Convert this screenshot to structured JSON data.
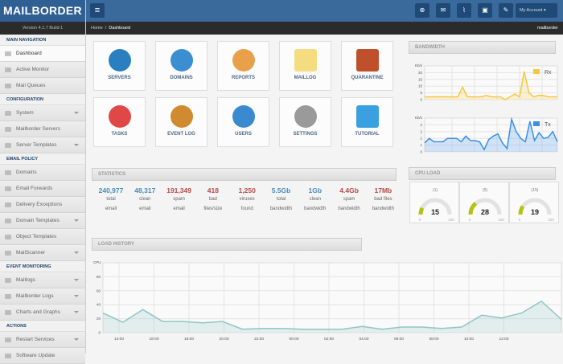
{
  "brand": "MAILBORDER",
  "version": "Version 4.1.7 Build 1",
  "sidebar": [
    {
      "type": "h",
      "label": "MAIN NAVIGATION"
    },
    {
      "label": "Dashboard",
      "active": true
    },
    {
      "label": "Active Monitor"
    },
    {
      "label": "Mail Queues"
    },
    {
      "type": "h",
      "label": "CONFIGURATION"
    },
    {
      "label": "System",
      "sub": true
    },
    {
      "label": "Mailborder Servers"
    },
    {
      "label": "Server Templates",
      "sub": true
    },
    {
      "type": "h",
      "label": "EMAIL POLICY"
    },
    {
      "label": "Domains"
    },
    {
      "label": "Email Forwards"
    },
    {
      "label": "Delivery Exceptions"
    },
    {
      "label": "Domain Templates",
      "sub": true
    },
    {
      "label": "Object Templates"
    },
    {
      "label": "MailScanner",
      "sub": true
    },
    {
      "type": "h",
      "label": "EVENT MONITORING"
    },
    {
      "label": "Maillogs",
      "sub": true
    },
    {
      "label": "Mailborder Logs",
      "sub": true
    },
    {
      "label": "Charts and Graphs",
      "sub": true
    },
    {
      "type": "h",
      "label": "ACTIONS"
    },
    {
      "label": "Restart Services",
      "sub": true
    },
    {
      "label": "Software Update"
    }
  ],
  "topbar": {
    "account": "My Account",
    "icons": [
      "plus-circle-icon",
      "envelope-icon",
      "chart-icon",
      "save-icon",
      "brush-icon"
    ]
  },
  "breadcrumb": {
    "home": "Home",
    "sep": "/",
    "current": "Dashboard",
    "user": "mailborder"
  },
  "tiles": [
    {
      "label": "SERVERS",
      "color": "#2a7fc0"
    },
    {
      "label": "DOMAINS",
      "color": "#3b8fd0"
    },
    {
      "label": "REPORTS",
      "color": "#e8a04a"
    },
    {
      "label": "MAILLOG",
      "color": "#f5dc80"
    },
    {
      "label": "QUARANTINE",
      "color": "#c0502c"
    },
    {
      "label": "TASKS",
      "color": "#e04848"
    },
    {
      "label": "EVENT LOG",
      "color": "#d08a30"
    },
    {
      "label": "USERS",
      "color": "#3a8ad0"
    },
    {
      "label": "SETTINGS",
      "color": "#9a9a9a"
    },
    {
      "label": "TUTORIAL",
      "color": "#3aa0e0"
    }
  ],
  "statistics": {
    "title": "STATISTICS",
    "items": [
      {
        "value": "240,977",
        "l1": "total",
        "l2": "email",
        "color": "#4a8ab8"
      },
      {
        "value": "48,317",
        "l1": "clean",
        "l2": "email",
        "color": "#4a8ab8"
      },
      {
        "value": "191,349",
        "l1": "spam",
        "l2": "email",
        "color": "#b84848"
      },
      {
        "value": "418",
        "l1": "bad",
        "l2": "files/size",
        "color": "#b84848"
      },
      {
        "value": "1,250",
        "l1": "viruses",
        "l2": "found",
        "color": "#b84848"
      },
      {
        "value": "5.5Gb",
        "l1": "total",
        "l2": "bandwidth",
        "color": "#4a8ab8"
      },
      {
        "value": "1Gb",
        "l1": "clean",
        "l2": "bandwidth",
        "color": "#4a8ab8"
      },
      {
        "value": "4.4Gb",
        "l1": "spam",
        "l2": "bandwidth",
        "color": "#b84848"
      },
      {
        "value": "17Mb",
        "l1": "bad files",
        "l2": "bandwidth",
        "color": "#b84848"
      }
    ]
  },
  "cpu_load": {
    "title": "CPU LOAD",
    "min": "0",
    "max": "100",
    "gauges": [
      {
        "label": "(1)",
        "value": 15
      },
      {
        "label": "(5)",
        "value": 28
      },
      {
        "label": "(15)",
        "value": 19
      }
    ]
  },
  "chart_data": [
    {
      "type": "area",
      "title": "BANDWIDTH",
      "name": "Rx",
      "ylabel": "Kb/s",
      "yticks": [
        "0",
        "5",
        "10",
        "15",
        "20"
      ],
      "ylim": [
        0,
        24
      ],
      "color": "#f5c842",
      "values": [
        2,
        2,
        2,
        2,
        2,
        2,
        2,
        2,
        9,
        2,
        2,
        2,
        2,
        3,
        2,
        2,
        2,
        0,
        2,
        4,
        2,
        20,
        5,
        2,
        3,
        3,
        2,
        2,
        2
      ]
    },
    {
      "type": "area",
      "name": "Tx",
      "ylabel": "Kb/s",
      "yticks": [
        "0",
        "1",
        "1",
        "2",
        "2"
      ],
      "ylim": [
        0,
        3
      ],
      "color": "#3a8fe8",
      "values": [
        0.8,
        1.2,
        0.9,
        0.9,
        0.9,
        1.2,
        1.2,
        1.2,
        0.9,
        1.4,
        1.0,
        1.0,
        0.9,
        0.2,
        1.1,
        1.4,
        1.6,
        0.8,
        0.3,
        2.9,
        1.8,
        1.2,
        0.9,
        2.7,
        1.0,
        1.7,
        1.2,
        1.3,
        1.8,
        0.9
      ]
    },
    {
      "type": "area",
      "title": "LOAD HISTORY",
      "ylabel": "CPU",
      "yticks": [
        "0",
        "20",
        "40",
        "60",
        "80"
      ],
      "ylim": [
        0,
        100
      ],
      "color": "#8fc5c5",
      "xticks": [
        "14:00",
        "16:00",
        "18:00",
        "20:00",
        "22:00",
        "00:00",
        "02:00",
        "04:00",
        "06:00",
        "08:00",
        "10:00",
        "12:00"
      ],
      "values": [
        28,
        15,
        33,
        16,
        16,
        14,
        16,
        5,
        6,
        6,
        5,
        5,
        5,
        9,
        5,
        8,
        8,
        6,
        8,
        25,
        21,
        28,
        45,
        19
      ]
    }
  ]
}
